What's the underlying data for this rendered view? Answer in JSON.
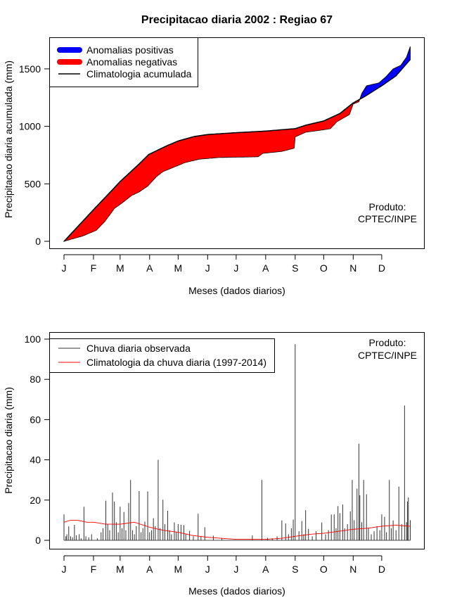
{
  "chart_data": [
    {
      "type": "area",
      "title": "Precipitacao diaria 2002 : Regiao 67",
      "xlabel": "Meses (dados diarios)",
      "ylabel": "Precipitacao diaria acumulada (mm)",
      "ylim": [
        0,
        1750
      ],
      "xlim": [
        1,
        365
      ],
      "yticks": [
        0,
        500,
        1000,
        1500
      ],
      "month_days": [
        1,
        32,
        60,
        91,
        121,
        152,
        182,
        213,
        244,
        274,
        305,
        335
      ],
      "month_labels": [
        "J",
        "F",
        "M",
        "A",
        "M",
        "J",
        "J",
        "A",
        "S",
        "O",
        "N",
        "D"
      ],
      "legend": {
        "placement": "top-left",
        "entries": [
          "Anomalias positivas",
          "Anomalias negativas",
          "Climatologia acumulada"
        ],
        "colors": [
          "#0000ff",
          "#ff0000",
          "#000000"
        ]
      },
      "annotation": [
        "Produto:",
        "CPTEC/INPE"
      ],
      "climatology_cumulative": [
        [
          1,
          0
        ],
        [
          32,
          275
        ],
        [
          52,
          449
        ],
        [
          60,
          520
        ],
        [
          80,
          673
        ],
        [
          90,
          755
        ],
        [
          108,
          827
        ],
        [
          121,
          873
        ],
        [
          138,
          912
        ],
        [
          152,
          929
        ],
        [
          182,
          945
        ],
        [
          213,
          959
        ],
        [
          244,
          980
        ],
        [
          255,
          1010
        ],
        [
          274,
          1047
        ],
        [
          291,
          1112
        ],
        [
          305,
          1204
        ],
        [
          317,
          1259
        ],
        [
          335,
          1353
        ],
        [
          350,
          1439
        ],
        [
          365,
          1582
        ]
      ],
      "observed_cumulative": [
        [
          1,
          0
        ],
        [
          21,
          47
        ],
        [
          35,
          96
        ],
        [
          44,
          173
        ],
        [
          54,
          286
        ],
        [
          62,
          333
        ],
        [
          72,
          398
        ],
        [
          80,
          429
        ],
        [
          89,
          480
        ],
        [
          98,
          561
        ],
        [
          105,
          606
        ],
        [
          113,
          633
        ],
        [
          128,
          684
        ],
        [
          143,
          714
        ],
        [
          164,
          729
        ],
        [
          205,
          735
        ],
        [
          210,
          765
        ],
        [
          230,
          782
        ],
        [
          243,
          810
        ],
        [
          244,
          908
        ],
        [
          255,
          949
        ],
        [
          273,
          969
        ],
        [
          281,
          980
        ],
        [
          288,
          1041
        ],
        [
          301,
          1102
        ],
        [
          305,
          1194
        ],
        [
          311,
          1214
        ],
        [
          314,
          1286
        ],
        [
          319,
          1353
        ],
        [
          332,
          1378
        ],
        [
          339,
          1429
        ],
        [
          347,
          1500
        ],
        [
          355,
          1531
        ],
        [
          361,
          1602
        ],
        [
          365,
          1694
        ]
      ]
    },
    {
      "type": "bar",
      "xlabel": "Meses (dados diarios)",
      "ylabel": "Precipitacao diaria (mm)",
      "ylim": [
        0,
        100
      ],
      "xlim": [
        1,
        365
      ],
      "yticks": [
        0,
        20,
        40,
        60,
        80,
        100
      ],
      "month_days": [
        1,
        32,
        60,
        91,
        121,
        152,
        182,
        213,
        244,
        274,
        305,
        335
      ],
      "month_labels": [
        "J",
        "F",
        "M",
        "A",
        "M",
        "J",
        "J",
        "A",
        "S",
        "O",
        "N",
        "D"
      ],
      "legend": {
        "placement": "top-left",
        "entries": [
          "Chuva diaria observada",
          "Climatologia da chuva diaria (1997-2014)"
        ],
        "colors": [
          "#333333",
          "#ff0000"
        ]
      },
      "annotation": [
        "Produto:",
        "CPTEC/INPE"
      ],
      "observed_daily": [
        [
          1,
          12.9
        ],
        [
          3,
          2
        ],
        [
          4,
          3
        ],
        [
          6,
          6.9
        ],
        [
          8,
          2
        ],
        [
          10,
          1.5
        ],
        [
          12,
          7.7
        ],
        [
          14,
          2.5
        ],
        [
          17,
          3
        ],
        [
          19,
          1
        ],
        [
          22,
          16.7
        ],
        [
          24,
          2
        ],
        [
          27,
          1.5
        ],
        [
          30,
          3
        ],
        [
          36,
          1
        ],
        [
          40,
          4
        ],
        [
          42,
          6
        ],
        [
          45,
          19.7
        ],
        [
          47,
          8
        ],
        [
          49,
          5
        ],
        [
          52,
          23.7
        ],
        [
          54,
          19.3
        ],
        [
          56,
          9
        ],
        [
          58,
          4
        ],
        [
          60,
          16.7
        ],
        [
          62,
          6
        ],
        [
          64,
          14.1
        ],
        [
          66,
          5
        ],
        [
          69,
          18.5
        ],
        [
          71,
          30
        ],
        [
          73,
          5
        ],
        [
          75,
          3
        ],
        [
          77,
          7
        ],
        [
          80,
          24.5
        ],
        [
          82,
          4
        ],
        [
          84,
          6
        ],
        [
          86,
          9.3
        ],
        [
          89,
          24.3
        ],
        [
          91,
          4
        ],
        [
          93,
          5
        ],
        [
          95,
          11
        ],
        [
          97,
          7
        ],
        [
          100,
          40
        ],
        [
          102,
          6
        ],
        [
          105,
          20.2
        ],
        [
          107,
          8
        ],
        [
          110,
          14.7
        ],
        [
          112,
          5
        ],
        [
          114,
          3
        ],
        [
          117,
          8.9
        ],
        [
          119,
          4
        ],
        [
          121,
          8.1
        ],
        [
          124,
          7.7
        ],
        [
          127,
          7.5
        ],
        [
          129,
          3
        ],
        [
          133,
          4.7
        ],
        [
          137,
          2
        ],
        [
          142,
          13.2
        ],
        [
          145,
          2
        ],
        [
          149,
          6.5
        ],
        [
          158,
          2.3
        ],
        [
          167,
          1.2
        ],
        [
          199,
          2.4
        ],
        [
          209,
          30
        ],
        [
          215,
          1.2
        ],
        [
          220,
          1
        ],
        [
          225,
          2
        ],
        [
          230,
          9.9
        ],
        [
          234,
          8.4
        ],
        [
          237,
          3
        ],
        [
          240,
          6
        ],
        [
          242,
          10.3
        ],
        [
          244,
          97.5
        ],
        [
          248,
          4.5
        ],
        [
          251,
          9.6
        ],
        [
          253,
          3
        ],
        [
          255,
          15
        ],
        [
          258,
          5.7
        ],
        [
          262,
          2
        ],
        [
          266,
          4.5
        ],
        [
          272,
          8.9
        ],
        [
          276,
          3
        ],
        [
          279,
          5
        ],
        [
          282,
          12.8
        ],
        [
          285,
          12.9
        ],
        [
          287,
          6
        ],
        [
          289,
          17
        ],
        [
          291,
          13.5
        ],
        [
          294,
          17.8
        ],
        [
          296,
          6
        ],
        [
          299,
          8
        ],
        [
          302,
          14.4
        ],
        [
          304,
          30
        ],
        [
          306,
          10
        ],
        [
          309,
          25.7
        ],
        [
          311,
          48
        ],
        [
          312,
          22.4
        ],
        [
          314,
          9
        ],
        [
          316,
          30
        ],
        [
          319,
          22.9
        ],
        [
          321,
          6
        ],
        [
          324,
          3
        ],
        [
          327,
          4.5
        ],
        [
          330,
          7
        ],
        [
          333,
          5
        ],
        [
          335,
          12.9
        ],
        [
          338,
          11.7
        ],
        [
          340,
          4
        ],
        [
          343,
          30
        ],
        [
          345,
          6
        ],
        [
          347,
          9.9
        ],
        [
          350,
          5
        ],
        [
          353,
          26.7
        ],
        [
          356,
          8
        ],
        [
          359,
          67
        ],
        [
          361,
          9
        ],
        [
          362,
          19.3
        ],
        [
          363,
          21.3
        ],
        [
          365,
          10
        ]
      ],
      "climatology_daily": [
        [
          1,
          9
        ],
        [
          8,
          10
        ],
        [
          15,
          10
        ],
        [
          25,
          9
        ],
        [
          32,
          9
        ],
        [
          45,
          8
        ],
        [
          60,
          8
        ],
        [
          75,
          9
        ],
        [
          91,
          6.5
        ],
        [
          105,
          5
        ],
        [
          121,
          4
        ],
        [
          135,
          2.5
        ],
        [
          152,
          1.5
        ],
        [
          166,
          1
        ],
        [
          182,
          0.5
        ],
        [
          200,
          0.5
        ],
        [
          213,
          0.5
        ],
        [
          230,
          1
        ],
        [
          244,
          2
        ],
        [
          260,
          3
        ],
        [
          274,
          3.5
        ],
        [
          290,
          4.5
        ],
        [
          305,
          5.5
        ],
        [
          320,
          6
        ],
        [
          335,
          7
        ],
        [
          350,
          7.5
        ],
        [
          365,
          7
        ]
      ]
    }
  ]
}
